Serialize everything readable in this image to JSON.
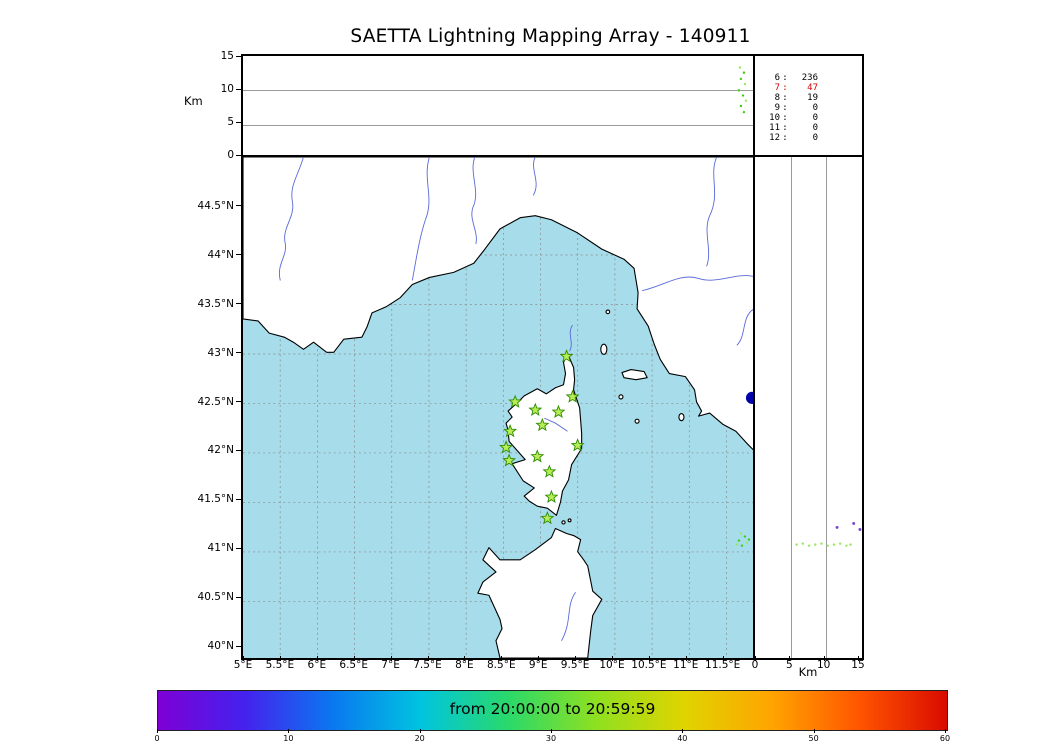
{
  "title": "SAETTA Lightning Mapping Array - 140911",
  "colors": {
    "sea": "#a7dcea",
    "land": "#ffffff",
    "coast": "#000000",
    "river": "#5a6bd8",
    "grid": "#8a8a8a",
    "station_fill": "#b8ee55",
    "station_edge": "#2e8b00",
    "flash_green": "#44cc11",
    "flash_lime": "#99e866",
    "flash_purple": "#7a3fd1",
    "lake": "#0000aa",
    "highlight_red": "#d40000",
    "colorbar_gradient": [
      "#7d00d6",
      "#4422ee",
      "#0a78f0",
      "#00c4e0",
      "#2ad96a",
      "#8fe020",
      "#e0d400",
      "#ffa400",
      "#ff5500",
      "#d90b00"
    ]
  },
  "time_height_panel": {
    "ylabel": "Km",
    "yticks": [
      "15",
      "10",
      "5",
      "0"
    ],
    "points": [
      [
        493,
        11
      ],
      [
        497,
        16
      ],
      [
        494,
        22
      ],
      [
        498,
        27
      ],
      [
        492,
        33
      ],
      [
        496,
        38
      ],
      [
        499,
        43
      ],
      [
        494,
        48
      ],
      [
        497,
        54
      ]
    ]
  },
  "stats_panel": {
    "separator": ":"
  },
  "map_panel": {
    "lat_ticks": [
      "44.5°N",
      "44°N",
      "43.5°N",
      "43°N",
      "42.5°N",
      "42°N",
      "41.5°N",
      "41°N",
      "40.5°N",
      "40°N"
    ],
    "lon_ticks": [
      "5°E",
      "5.5°E",
      "6°E",
      "6.5°E",
      "7°E",
      "7.5°E",
      "8°E",
      "8.5°E",
      "9°E",
      "9.5°E",
      "10°E",
      "10.5°E",
      "11°E",
      "11.5°E"
    ],
    "stations": [
      [
        321,
        197
      ],
      [
        270,
        242
      ],
      [
        290,
        250
      ],
      [
        313,
        252
      ],
      [
        327,
        237
      ],
      [
        265,
        271
      ],
      [
        297,
        265
      ],
      [
        261,
        287
      ],
      [
        332,
        285
      ],
      [
        264,
        300
      ],
      [
        292,
        296
      ],
      [
        304,
        311
      ],
      [
        306,
        336
      ],
      [
        302,
        357
      ]
    ],
    "flash_points": [
      [
        494,
        372
      ],
      [
        498,
        375
      ],
      [
        492,
        379
      ],
      [
        500,
        381
      ],
      [
        495,
        384
      ],
      [
        502,
        378
      ],
      [
        490,
        383
      ]
    ]
  },
  "alt_lat_panel": {
    "xlabel": "Km",
    "xticks": [
      "0",
      "5",
      "10",
      "15"
    ],
    "points_green": [
      [
        40,
        383
      ],
      [
        46,
        382
      ],
      [
        52,
        384
      ],
      [
        58,
        383
      ],
      [
        64,
        382
      ],
      [
        70,
        384
      ],
      [
        76,
        383
      ],
      [
        82,
        382
      ],
      [
        88,
        384
      ],
      [
        92,
        383
      ]
    ],
    "points_purple": [
      [
        79,
        366
      ],
      [
        95,
        362
      ],
      [
        101,
        368
      ]
    ]
  },
  "colorbar": {
    "label": "from 20:00:00 to 20:59:59",
    "ticks": [
      "0",
      "10",
      "20",
      "30",
      "40",
      "50",
      "60"
    ]
  },
  "chart_data": {
    "type": "scatter",
    "title": "SAETTA Lightning Mapping Array - 140911",
    "date_code": "140911",
    "time_window": {
      "start": "20:00:00",
      "end": "20:59:59"
    },
    "station_count_table": [
      {
        "id": "6",
        "count": 236,
        "highlight": false
      },
      {
        "id": "7",
        "count": 47,
        "highlight": true
      },
      {
        "id": "8",
        "count": 19,
        "highlight": false
      },
      {
        "id": "9",
        "count": 0,
        "highlight": false
      },
      {
        "id": "10",
        "count": 0,
        "highlight": false
      },
      {
        "id": "11",
        "count": 0,
        "highlight": false
      },
      {
        "id": "12",
        "count": 0,
        "highlight": false
      }
    ],
    "panels": {
      "time_height": {
        "ylabel": "Km",
        "ylim": [
          0,
          15
        ],
        "yticks": [
          0,
          5,
          10,
          15
        ],
        "gridlines_km": [
          5,
          10
        ]
      },
      "plan_view_map": {
        "lon_range_deg_e": [
          5.0,
          11.9
        ],
        "lat_range_deg_n": [
          39.9,
          45.0
        ],
        "lon_ticks_deg_e": [
          5,
          5.5,
          6,
          6.5,
          7,
          7.5,
          8,
          8.5,
          9,
          9.5,
          10,
          10.5,
          11,
          11.5
        ],
        "lat_ticks_deg_n": [
          40,
          40.5,
          41,
          41.5,
          42,
          42.5,
          43,
          43.5,
          44,
          44.5
        ],
        "grid_step_deg": 0.5,
        "grid_style": "dashed"
      },
      "height_latitude": {
        "xlabel": "Km",
        "xlim": [
          0,
          15
        ],
        "xticks": [
          0,
          5,
          10,
          15
        ],
        "gridlines_km": [
          5,
          10
        ]
      },
      "colorbar": {
        "label": "from 20:00:00 to 20:59:59",
        "range_minutes": [
          0,
          60
        ],
        "ticks_minutes": [
          0,
          10,
          20,
          30,
          40,
          50,
          60
        ]
      }
    },
    "lma_stations_lonlat_deg": [
      [
        9.27,
        42.97
      ],
      [
        8.66,
        42.52
      ],
      [
        8.93,
        42.43
      ],
      [
        9.24,
        42.41
      ],
      [
        9.43,
        42.57
      ],
      [
        8.59,
        42.22
      ],
      [
        9.02,
        42.28
      ],
      [
        8.54,
        42.06
      ],
      [
        9.5,
        42.08
      ],
      [
        8.58,
        41.92
      ],
      [
        8.96,
        41.96
      ],
      [
        9.12,
        41.81
      ],
      [
        9.15,
        41.55
      ],
      [
        9.09,
        41.34
      ]
    ],
    "lightning_cluster": {
      "approx_lon_deg": 11.8,
      "approx_lat_deg": 41.1,
      "alt_km_range": [
        6,
        13
      ],
      "time_min_into_hour": 58
    }
  }
}
